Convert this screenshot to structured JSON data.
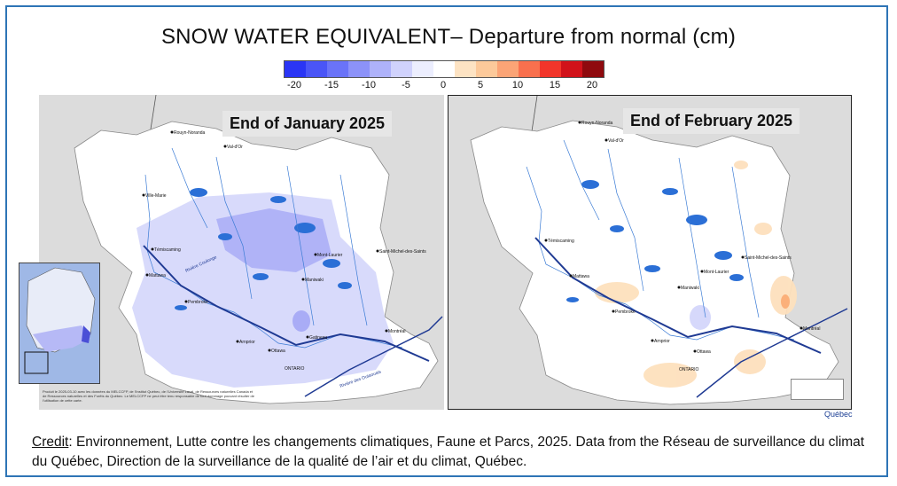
{
  "title": "SNOW WATER EQUIVALENT– Departure from normal (cm)",
  "legend": {
    "colors": [
      "#2a35f5",
      "#4a55f7",
      "#6a73f8",
      "#8c92f9",
      "#aeb2fa",
      "#d0d2fc",
      "#eceefe",
      "#ffffff",
      "#fde3c3",
      "#fcc99a",
      "#fba476",
      "#f9704e",
      "#f2352a",
      "#d1121a",
      "#8f0a0e"
    ],
    "ticks": [
      "-20",
      "-15",
      "-10",
      "-5",
      "0",
      "5",
      "10",
      "15",
      "20"
    ]
  },
  "panels": [
    {
      "label": "End of January 2025"
    },
    {
      "label": "End of February 2025"
    }
  ],
  "places": {
    "rouyn": "Rouyn-Noranda",
    "valdor": "Val-d'Or",
    "villemarie": "Ville-Marie",
    "temiscaming": "Témiscaming",
    "mattawa": "Mattawa",
    "pembroke": "Pembroke",
    "arnprior": "Arnprior",
    "ottawa": "Ottawa",
    "gatineau": "Gatineau",
    "mtlaurier": "Mont-Laurier",
    "maniwaki": "Maniwaki",
    "stmichel": "Saint-Michel-des-Saints",
    "montreal": "Montréal",
    "ontario": "ONTARIO",
    "rivcoul": "Rivière Coulonge",
    "rivoutaouais": "Rivière des Outaouais"
  },
  "credit": {
    "label": "Credit",
    "text": ": Environnement, Lutte contre les changements climatiques, Faune et Parcs, 2025. Data from the Réseau de surveillance du climat du Québec, Direction de la surveillance de la qualité de l’air et du climat, Québec."
  },
  "map_footer": {
    "disclaimer": "Produit le 2025-03-10 avec les données du MELCCFP, de l'Institut Québec, de l'Université Laval, de Ressources naturelles Canada et de Ressources naturelles et des Forêts du Québec. Le MELCCFP ne peut être tenu responsable de tout dommage pouvant résulter de l'utilisation de cette carte.",
    "logo": "Québec"
  }
}
